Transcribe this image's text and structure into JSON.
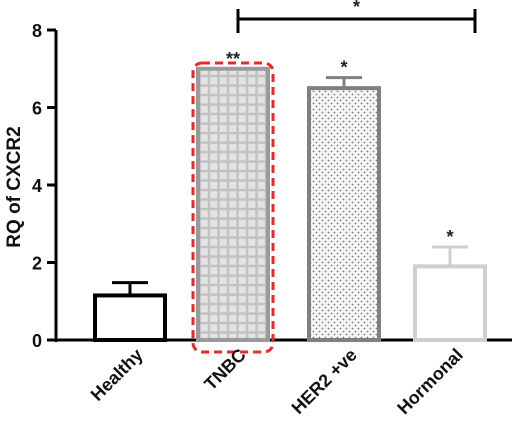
{
  "chart_data": {
    "type": "bar",
    "categories": [
      "Healthy",
      "TNBC",
      "HER2 +ve",
      "Hormonal"
    ],
    "values": [
      1.15,
      7.0,
      6.5,
      1.9
    ],
    "errors": [
      0.33,
      0.0,
      0.27,
      0.5
    ],
    "significance": [
      "",
      "**",
      "*",
      "*"
    ],
    "bracket": {
      "from": "TNBC",
      "to": "Hormonal",
      "label": "*"
    },
    "highlight": "TNBC",
    "ylabel": "RQ of CXCR2",
    "xlabel": "",
    "ylim": [
      0,
      8
    ],
    "yticks": [
      "0",
      "2",
      "4",
      "6",
      "8"
    ],
    "fills": [
      "none",
      "grid",
      "dots",
      "none"
    ],
    "colors": {
      "healthy_border": "#000000",
      "tnbc_border": "#9a9a9a",
      "tnbc_fill": "#bdbdbd",
      "her2_border": "#808080",
      "her2_fill": "#f4f4f4",
      "hormonal_border": "#cfcfcf",
      "highlight_box": "#e8282a",
      "axis": "#000000"
    }
  }
}
